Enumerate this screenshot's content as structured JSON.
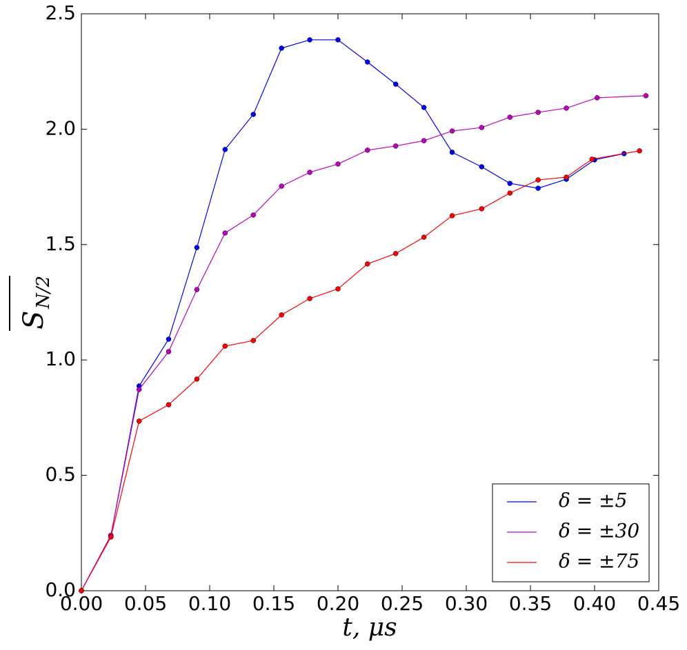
{
  "chart_data": {
    "type": "line",
    "xlabel": "t, μs",
    "ylabel": "S",
    "ylabel_subscript": "N/2",
    "xlim": [
      0,
      0.45
    ],
    "ylim": [
      0,
      2.5
    ],
    "xticks": [
      {
        "value": 0,
        "label": "0.00"
      },
      {
        "value": 0.05,
        "label": "0.05"
      },
      {
        "value": 0.1,
        "label": "0.10"
      },
      {
        "value": 0.15,
        "label": "0.15"
      },
      {
        "value": 0.2,
        "label": "0.20"
      },
      {
        "value": 0.25,
        "label": "0.25"
      },
      {
        "value": 0.3,
        "label": "0.30"
      },
      {
        "value": 0.35,
        "label": "0.35"
      },
      {
        "value": 0.4,
        "label": "0.40"
      },
      {
        "value": 0.45,
        "label": "0.45"
      }
    ],
    "yticks": [
      {
        "value": 0,
        "label": "0.0"
      },
      0.5,
      {
        "value": 1,
        "label": "1.0"
      },
      1.5,
      {
        "value": 2,
        "label": "2.0"
      },
      2.5
    ],
    "legend_position": "lower right",
    "series": [
      {
        "name": "δ = ±5",
        "color": "#0000ff",
        "x": [
          0,
          0.023,
          0.045,
          0.068,
          0.09,
          0.112,
          0.134,
          0.156,
          0.178,
          0.2,
          0.223,
          0.245,
          0.267,
          0.289,
          0.312,
          0.334,
          0.356,
          0.378,
          0.4,
          0.423
        ],
        "values": [
          0,
          0.24,
          0.887,
          1.09,
          1.487,
          1.912,
          2.064,
          2.351,
          2.387,
          2.387,
          2.291,
          2.195,
          2.094,
          1.9,
          1.837,
          1.765,
          1.744,
          1.783,
          1.867,
          1.894
        ]
      },
      {
        "name": "δ = ±30",
        "color": "#bf00bf",
        "x": [
          0,
          0.023,
          0.045,
          0.068,
          0.09,
          0.112,
          0.134,
          0.156,
          0.178,
          0.2,
          0.223,
          0.245,
          0.267,
          0.289,
          0.312,
          0.334,
          0.356,
          0.378,
          0.402,
          0.44
        ],
        "values": [
          0,
          0.24,
          0.872,
          1.036,
          1.305,
          1.55,
          1.628,
          1.753,
          1.813,
          1.849,
          1.909,
          1.927,
          1.95,
          1.992,
          2.007,
          2.052,
          2.073,
          2.091,
          2.136,
          2.145
        ]
      },
      {
        "name": "δ = ±75",
        "color": "#ff0000",
        "x": [
          0,
          0.023,
          0.045,
          0.068,
          0.09,
          0.112,
          0.134,
          0.156,
          0.178,
          0.2,
          0.223,
          0.245,
          0.267,
          0.289,
          0.312,
          0.334,
          0.356,
          0.378,
          0.398,
          0.435
        ],
        "values": [
          0,
          0.233,
          0.735,
          0.806,
          0.917,
          1.06,
          1.084,
          1.195,
          1.266,
          1.308,
          1.416,
          1.461,
          1.532,
          1.625,
          1.655,
          1.723,
          1.78,
          1.792,
          1.87,
          1.906
        ]
      }
    ]
  }
}
